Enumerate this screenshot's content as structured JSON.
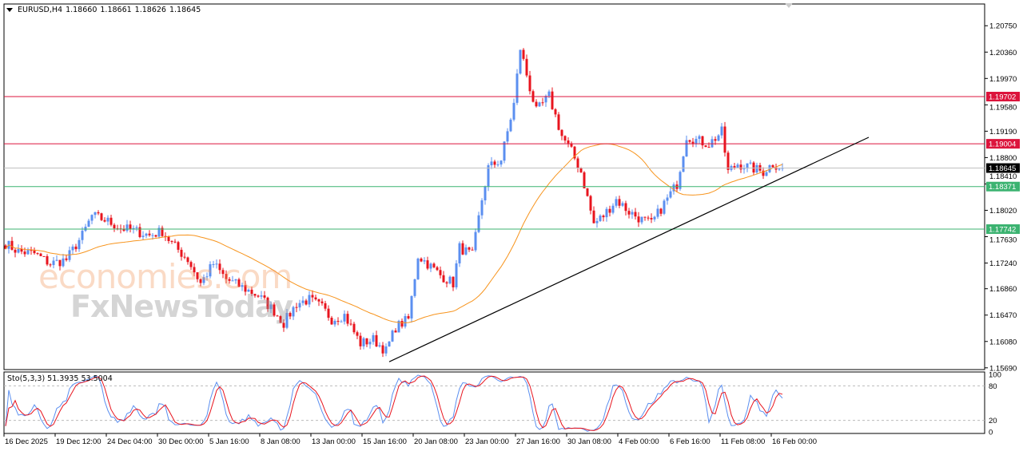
{
  "header": {
    "symbol": "EURUSD,H4",
    "open": "1.18660",
    "high": "1.18661",
    "low": "1.18626",
    "close": "1.18645"
  },
  "watermark": {
    "line1": "economies.com",
    "line2": "FxNewsToday"
  },
  "colors": {
    "bull": "#5b8ff0",
    "bear": "#e8141e",
    "ma": "#f7941d",
    "resistance": "#dc143c",
    "support": "#3cb371",
    "current": "#000000",
    "stoch_main": "#5b8ff0",
    "stoch_signal": "#e8141e"
  },
  "chart_data": {
    "type": "candlestick",
    "symbol": "EURUSD",
    "timeframe": "H4",
    "ylim": [
      1.1569,
      1.209
    ],
    "price_ticks": [
      "1.20750",
      "1.20360",
      "1.19970",
      "1.19580",
      "1.19190",
      "1.18800",
      "1.18410",
      "1.18020",
      "1.17630",
      "1.17240",
      "1.16860",
      "1.16470",
      "1.16080",
      "1.15690"
    ],
    "time_ticks": [
      "16 Dec 2025",
      "19 Dec 12:00",
      "24 Dec 04:00",
      "30 Dec 00:00",
      "5 Jan 16:00",
      "8 Jan 08:00",
      "13 Jan 00:00",
      "15 Jan 16:00",
      "20 Jan 08:00",
      "23 Jan 00:00",
      "27 Jan 16:00",
      "30 Jan 08:00",
      "4 Feb 00:00",
      "6 Feb 16:00",
      "11 Feb 08:00",
      "16 Feb 00:00"
    ],
    "candles_per_tick": 16,
    "close_waypoints": [
      [
        0,
        1.1753
      ],
      [
        4,
        1.1741
      ],
      [
        9,
        1.1738
      ],
      [
        14,
        1.1723
      ],
      [
        19,
        1.1729
      ],
      [
        24,
        1.1765
      ],
      [
        27,
        1.1794
      ],
      [
        31,
        1.1788
      ],
      [
        36,
        1.1776
      ],
      [
        41,
        1.1771
      ],
      [
        45,
        1.1765
      ],
      [
        49,
        1.1771
      ],
      [
        52,
        1.1753
      ],
      [
        57,
        1.1729
      ],
      [
        61,
        1.1694
      ],
      [
        65,
        1.1723
      ],
      [
        69,
        1.17
      ],
      [
        74,
        1.1688
      ],
      [
        79,
        1.1676
      ],
      [
        84,
        1.1653
      ],
      [
        87,
        1.1635
      ],
      [
        91,
        1.1664
      ],
      [
        95,
        1.167
      ],
      [
        99,
        1.1658
      ],
      [
        102,
        1.1641
      ],
      [
        106,
        1.1647
      ],
      [
        111,
        1.1605
      ],
      [
        115,
        1.1611
      ],
      [
        119,
        1.1594
      ],
      [
        122,
        1.1629
      ],
      [
        126,
        1.1641
      ],
      [
        129,
        1.1735
      ],
      [
        132,
        1.1723
      ],
      [
        136,
        1.1706
      ],
      [
        140,
        1.1694
      ],
      [
        142,
        1.1747
      ],
      [
        146,
        1.1735
      ],
      [
        149,
        1.1818
      ],
      [
        151,
        1.1865
      ],
      [
        155,
        1.1877
      ],
      [
        159,
        1.1959
      ],
      [
        161,
        1.2042
      ],
      [
        164,
        1.1983
      ],
      [
        166,
        1.1948
      ],
      [
        170,
        1.1971
      ],
      [
        174,
        1.1912
      ],
      [
        177,
        1.1889
      ],
      [
        180,
        1.1859
      ],
      [
        184,
        1.1782
      ],
      [
        187,
        1.1794
      ],
      [
        191,
        1.1818
      ],
      [
        195,
        1.18
      ],
      [
        199,
        1.1788
      ],
      [
        202,
        1.1782
      ],
      [
        206,
        1.1812
      ],
      [
        210,
        1.1841
      ],
      [
        213,
        1.1912
      ],
      [
        216,
        1.1906
      ],
      [
        220,
        1.19
      ],
      [
        224,
        1.1918
      ],
      [
        226,
        1.1859
      ],
      [
        229,
        1.1871
      ],
      [
        233,
        1.1865
      ],
      [
        237,
        1.1859
      ],
      [
        240,
        1.1871
      ],
      [
        243,
        1.1865
      ]
    ],
    "levels": [
      {
        "price": 1.19702,
        "label": "1.19702",
        "type": "resistance"
      },
      {
        "price": 1.19004,
        "label": "1.19004",
        "type": "resistance"
      },
      {
        "price": 1.18645,
        "label": "1.18645",
        "type": "current"
      },
      {
        "price": 1.18371,
        "label": "1.18371",
        "type": "support"
      },
      {
        "price": 1.17742,
        "label": "1.17742",
        "type": "support"
      }
    ],
    "trendline": {
      "start": [
        120,
        1.1578
      ],
      "end": [
        270,
        1.191
      ]
    },
    "moving_average": {
      "period": 40
    },
    "stochastic": {
      "label": "Sto(5,3,3) 51.3935 53.5004",
      "k": 5,
      "d": 3,
      "slowing": 3,
      "levels": [
        "100",
        "80",
        "20",
        "0"
      ]
    }
  }
}
